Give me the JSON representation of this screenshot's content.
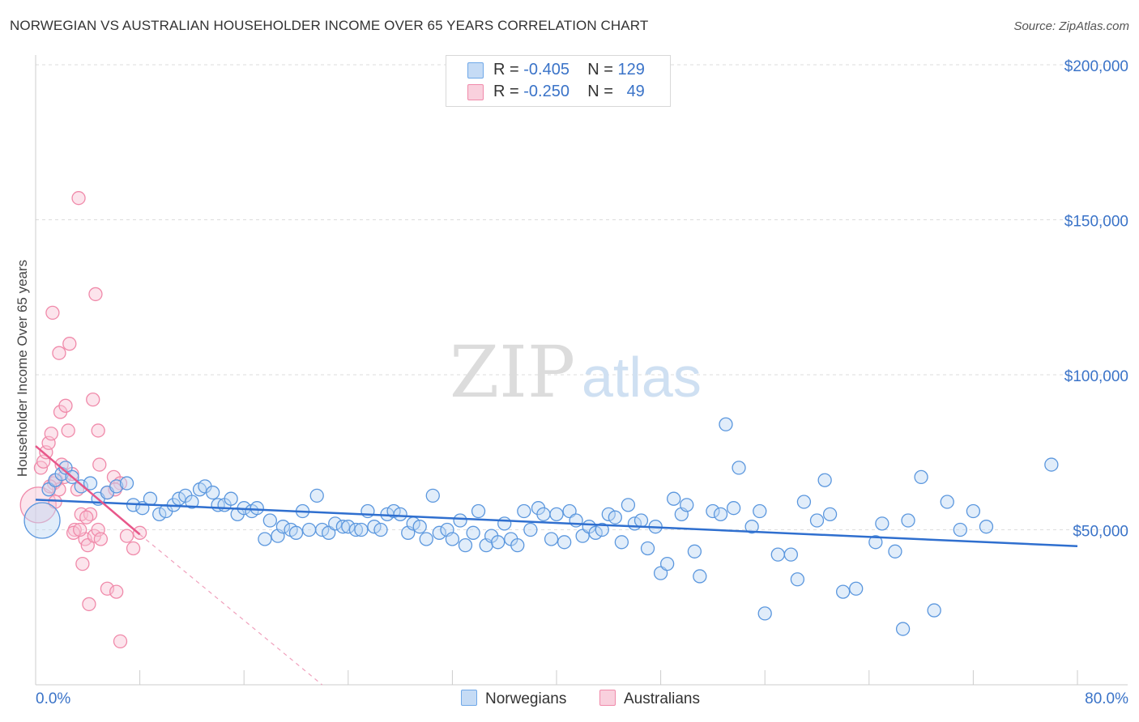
{
  "title": "NORWEGIAN VS AUSTRALIAN HOUSEHOLDER INCOME OVER 65 YEARS CORRELATION CHART",
  "source": "Source: ZipAtlas.com",
  "watermark": {
    "zip": "ZIP",
    "atlas": "atlas"
  },
  "legend": {
    "norwegians": {
      "r_label": "R =",
      "r_value": "-0.405",
      "n_label": "N =",
      "n_value": "129",
      "color": "#6fa8e8"
    },
    "australians": {
      "r_label": "R =",
      "r_value": "-0.250",
      "n_label": "N =",
      "n_value": "49",
      "color": "#f08aaa"
    }
  },
  "bottom_legend": {
    "norwegians": "Norwegians",
    "australians": "Australians"
  },
  "x_axis": {
    "min_label": "0.0%",
    "max_label": "80.0%"
  },
  "chart_data": {
    "type": "scatter",
    "title": "NORWEGIAN VS AUSTRALIAN HOUSEHOLDER INCOME OVER 65 YEARS CORRELATION CHART",
    "xlabel": "",
    "ylabel": "Householder Income Over 65 years",
    "xlim": [
      0,
      80
    ],
    "ylim": [
      0,
      200000
    ],
    "y_ticks": [
      50000,
      100000,
      150000,
      200000
    ],
    "y_tick_labels": [
      "$50,000",
      "$100,000",
      "$150,000",
      "$200,000"
    ],
    "x_tick_labels": [
      "0.0%",
      "80.0%"
    ],
    "grid": true,
    "series": [
      {
        "name": "Norwegians",
        "color": "#6fa8e8",
        "trend": {
          "x": [
            0,
            80
          ],
          "y": [
            59700,
            44700
          ]
        },
        "points": [
          [
            0.5,
            53000,
            "L"
          ],
          [
            1,
            63000
          ],
          [
            1.5,
            66000
          ],
          [
            2,
            68000
          ],
          [
            2.3,
            70000
          ],
          [
            2.8,
            67000
          ],
          [
            3.5,
            64000
          ],
          [
            4.2,
            65000
          ],
          [
            4.8,
            60000
          ],
          [
            5.5,
            62000
          ],
          [
            6.2,
            64000
          ],
          [
            7,
            65000
          ],
          [
            7.5,
            58000
          ],
          [
            8.2,
            57000
          ],
          [
            8.8,
            60000
          ],
          [
            9.5,
            55000
          ],
          [
            10,
            56000
          ],
          [
            10.6,
            58000
          ],
          [
            11,
            60000
          ],
          [
            11.5,
            61000
          ],
          [
            12,
            59000
          ],
          [
            12.6,
            63000
          ],
          [
            13,
            64000
          ],
          [
            13.6,
            62000
          ],
          [
            14,
            58000
          ],
          [
            14.5,
            58000
          ],
          [
            15,
            60000
          ],
          [
            15.5,
            55000
          ],
          [
            16,
            57000
          ],
          [
            16.6,
            56000
          ],
          [
            17,
            57000
          ],
          [
            17.6,
            47000
          ],
          [
            18,
            53000
          ],
          [
            18.6,
            48000
          ],
          [
            19,
            51000
          ],
          [
            19.6,
            50000
          ],
          [
            20,
            49000
          ],
          [
            20.5,
            56000
          ],
          [
            21,
            50000
          ],
          [
            21.6,
            61000
          ],
          [
            22,
            50000
          ],
          [
            22.5,
            49000
          ],
          [
            23,
            52000
          ],
          [
            23.6,
            51000
          ],
          [
            24,
            51000
          ],
          [
            24.6,
            50000
          ],
          [
            25,
            50000
          ],
          [
            25.5,
            56000
          ],
          [
            26,
            51000
          ],
          [
            26.5,
            50000
          ],
          [
            27,
            55000
          ],
          [
            27.5,
            56000
          ],
          [
            28,
            55000
          ],
          [
            28.6,
            49000
          ],
          [
            29,
            52000
          ],
          [
            29.5,
            51000
          ],
          [
            30,
            47000
          ],
          [
            30.5,
            61000
          ],
          [
            31,
            49000
          ],
          [
            31.6,
            50000
          ],
          [
            32,
            47000
          ],
          [
            32.6,
            53000
          ],
          [
            33,
            45000
          ],
          [
            33.6,
            49000
          ],
          [
            34,
            56000
          ],
          [
            34.6,
            45000
          ],
          [
            35,
            48000
          ],
          [
            35.5,
            46000
          ],
          [
            36,
            52000
          ],
          [
            36.5,
            47000
          ],
          [
            37,
            45000
          ],
          [
            37.5,
            56000
          ],
          [
            38,
            50000
          ],
          [
            38.6,
            57000
          ],
          [
            39,
            55000
          ],
          [
            39.6,
            47000
          ],
          [
            40,
            55000
          ],
          [
            40.6,
            46000
          ],
          [
            41,
            56000
          ],
          [
            41.5,
            53000
          ],
          [
            42,
            48000
          ],
          [
            42.5,
            51000
          ],
          [
            43,
            49000
          ],
          [
            43.5,
            50000
          ],
          [
            44,
            55000
          ],
          [
            44.5,
            54000
          ],
          [
            45,
            46000
          ],
          [
            45.5,
            58000
          ],
          [
            46,
            52000
          ],
          [
            46.5,
            53000
          ],
          [
            47,
            44000
          ],
          [
            47.6,
            51000
          ],
          [
            48,
            36000
          ],
          [
            48.5,
            39000
          ],
          [
            49,
            60000
          ],
          [
            49.6,
            55000
          ],
          [
            50,
            58000
          ],
          [
            50.6,
            43000
          ],
          [
            51,
            35000
          ],
          [
            52,
            56000
          ],
          [
            52.6,
            55000
          ],
          [
            53,
            84000
          ],
          [
            53.6,
            57000
          ],
          [
            54,
            70000
          ],
          [
            55,
            51000
          ],
          [
            55.6,
            56000
          ],
          [
            56,
            23000
          ],
          [
            57,
            42000
          ],
          [
            58,
            42000
          ],
          [
            58.5,
            34000
          ],
          [
            59,
            59000
          ],
          [
            60,
            53000
          ],
          [
            60.6,
            66000
          ],
          [
            61,
            55000
          ],
          [
            62,
            30000
          ],
          [
            63,
            31000
          ],
          [
            64.5,
            46000
          ],
          [
            65,
            52000
          ],
          [
            66,
            43000
          ],
          [
            66.6,
            18000
          ],
          [
            67,
            53000
          ],
          [
            68,
            67000
          ],
          [
            69,
            24000
          ],
          [
            70,
            59000
          ],
          [
            71,
            50000
          ],
          [
            72,
            56000
          ],
          [
            73,
            51000
          ],
          [
            78,
            71000
          ]
        ]
      },
      {
        "name": "Australians",
        "color": "#f08aaa",
        "trend": {
          "x": [
            0,
            8
          ],
          "y": [
            77000,
            48500
          ]
        },
        "trend_dashed": {
          "x": [
            8,
            22
          ],
          "y": [
            48500,
            0
          ]
        },
        "points": [
          [
            0.2,
            58000,
            "L"
          ],
          [
            0.4,
            70000
          ],
          [
            0.6,
            72000
          ],
          [
            0.8,
            75000
          ],
          [
            1,
            78000
          ],
          [
            1.2,
            81000
          ],
          [
            1.4,
            65000
          ],
          [
            1.6,
            66000
          ],
          [
            1.8,
            63000
          ],
          [
            2,
            71000
          ],
          [
            2.2,
            67000
          ],
          [
            2.5,
            82000
          ],
          [
            2.8,
            68000
          ],
          [
            3,
            50000
          ],
          [
            3.2,
            63000
          ],
          [
            3.5,
            55000
          ],
          [
            3.8,
            47000
          ],
          [
            4,
            45000
          ],
          [
            4.2,
            55000
          ],
          [
            4.5,
            48000
          ],
          [
            4.8,
            50000
          ],
          [
            5,
            47000
          ],
          [
            5.5,
            62000
          ],
          [
            6,
            67000
          ],
          [
            6.5,
            65000
          ],
          [
            7,
            48000
          ],
          [
            7.5,
            44000
          ],
          [
            8,
            49000
          ],
          [
            1.5,
            59000
          ],
          [
            1.1,
            64000
          ],
          [
            1.3,
            120000
          ],
          [
            1.8,
            107000
          ],
          [
            2.6,
            110000
          ],
          [
            1.9,
            88000
          ],
          [
            2.3,
            90000
          ],
          [
            3.3,
            157000
          ],
          [
            4.6,
            126000
          ],
          [
            4.4,
            92000
          ],
          [
            4.8,
            82000
          ],
          [
            4.9,
            71000
          ],
          [
            6.1,
            63000
          ],
          [
            5.5,
            31000
          ],
          [
            6.2,
            30000
          ],
          [
            6.5,
            14000
          ],
          [
            4.1,
            26000
          ],
          [
            3.6,
            39000
          ],
          [
            2.9,
            49000
          ],
          [
            3.9,
            54000
          ],
          [
            3.4,
            50000
          ]
        ]
      }
    ]
  }
}
